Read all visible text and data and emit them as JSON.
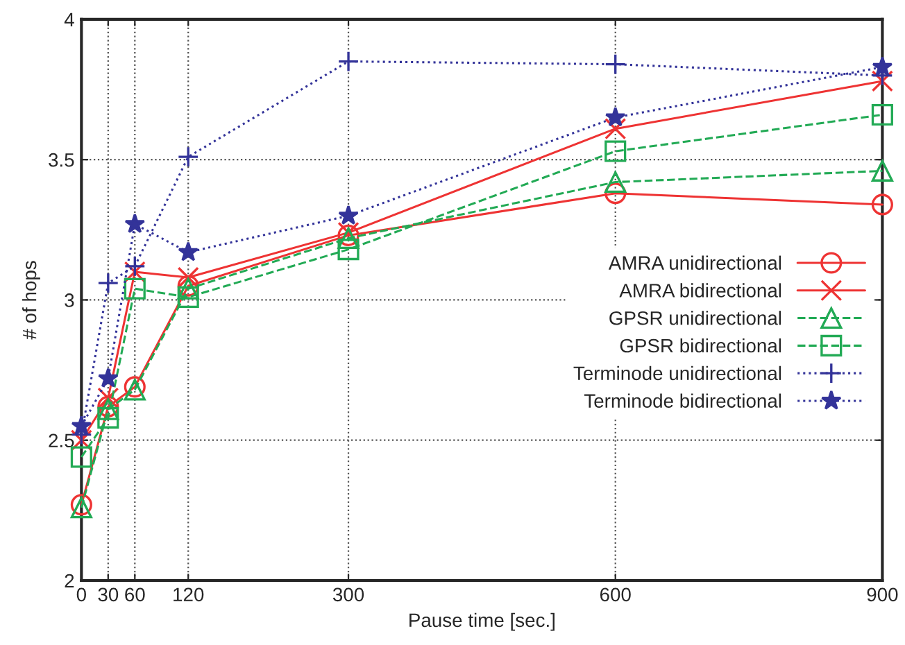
{
  "chart_data": {
    "type": "line",
    "xlabel": "Pause time [sec.]",
    "ylabel": "# of hops",
    "x": [
      0,
      30,
      60,
      120,
      300,
      600,
      900
    ],
    "xlim": [
      0,
      900
    ],
    "xticks": [
      0,
      30,
      60,
      120,
      300,
      600,
      900
    ],
    "ylim": [
      2,
      4
    ],
    "yticks": [
      2,
      2.5,
      3,
      3.5,
      4
    ],
    "grid": true,
    "legend": "right",
    "series": [
      {
        "name": "AMRA unidirectional",
        "color": "#ee3333",
        "marker": "circle",
        "line_style": "solid",
        "values": [
          2.27,
          2.62,
          2.69,
          3.05,
          3.23,
          3.38,
          3.34
        ]
      },
      {
        "name": "AMRA bidirectional",
        "color": "#ee3333",
        "marker": "cross",
        "line_style": "solid",
        "values": [
          2.5,
          2.65,
          3.1,
          3.08,
          3.24,
          3.61,
          3.78
        ]
      },
      {
        "name": "GPSR unidirectional",
        "color": "#22aa55",
        "marker": "triangle",
        "line_style": "dashed",
        "values": [
          2.26,
          2.61,
          2.68,
          3.04,
          3.22,
          3.42,
          3.46
        ]
      },
      {
        "name": "GPSR bidirectional",
        "color": "#22aa55",
        "marker": "square",
        "line_style": "dashed",
        "values": [
          2.44,
          2.58,
          3.04,
          3.01,
          3.18,
          3.53,
          3.66
        ]
      },
      {
        "name": "Terminode unidirectional",
        "color": "#333399",
        "marker": "plus",
        "line_style": "dotted",
        "values": [
          2.52,
          3.06,
          3.12,
          3.51,
          3.85,
          3.84,
          3.8
        ]
      },
      {
        "name": "Terminode bidirectional",
        "color": "#333399",
        "marker": "star",
        "line_style": "dotted",
        "values": [
          2.55,
          2.72,
          3.27,
          3.17,
          3.3,
          3.65,
          3.83
        ]
      }
    ]
  }
}
